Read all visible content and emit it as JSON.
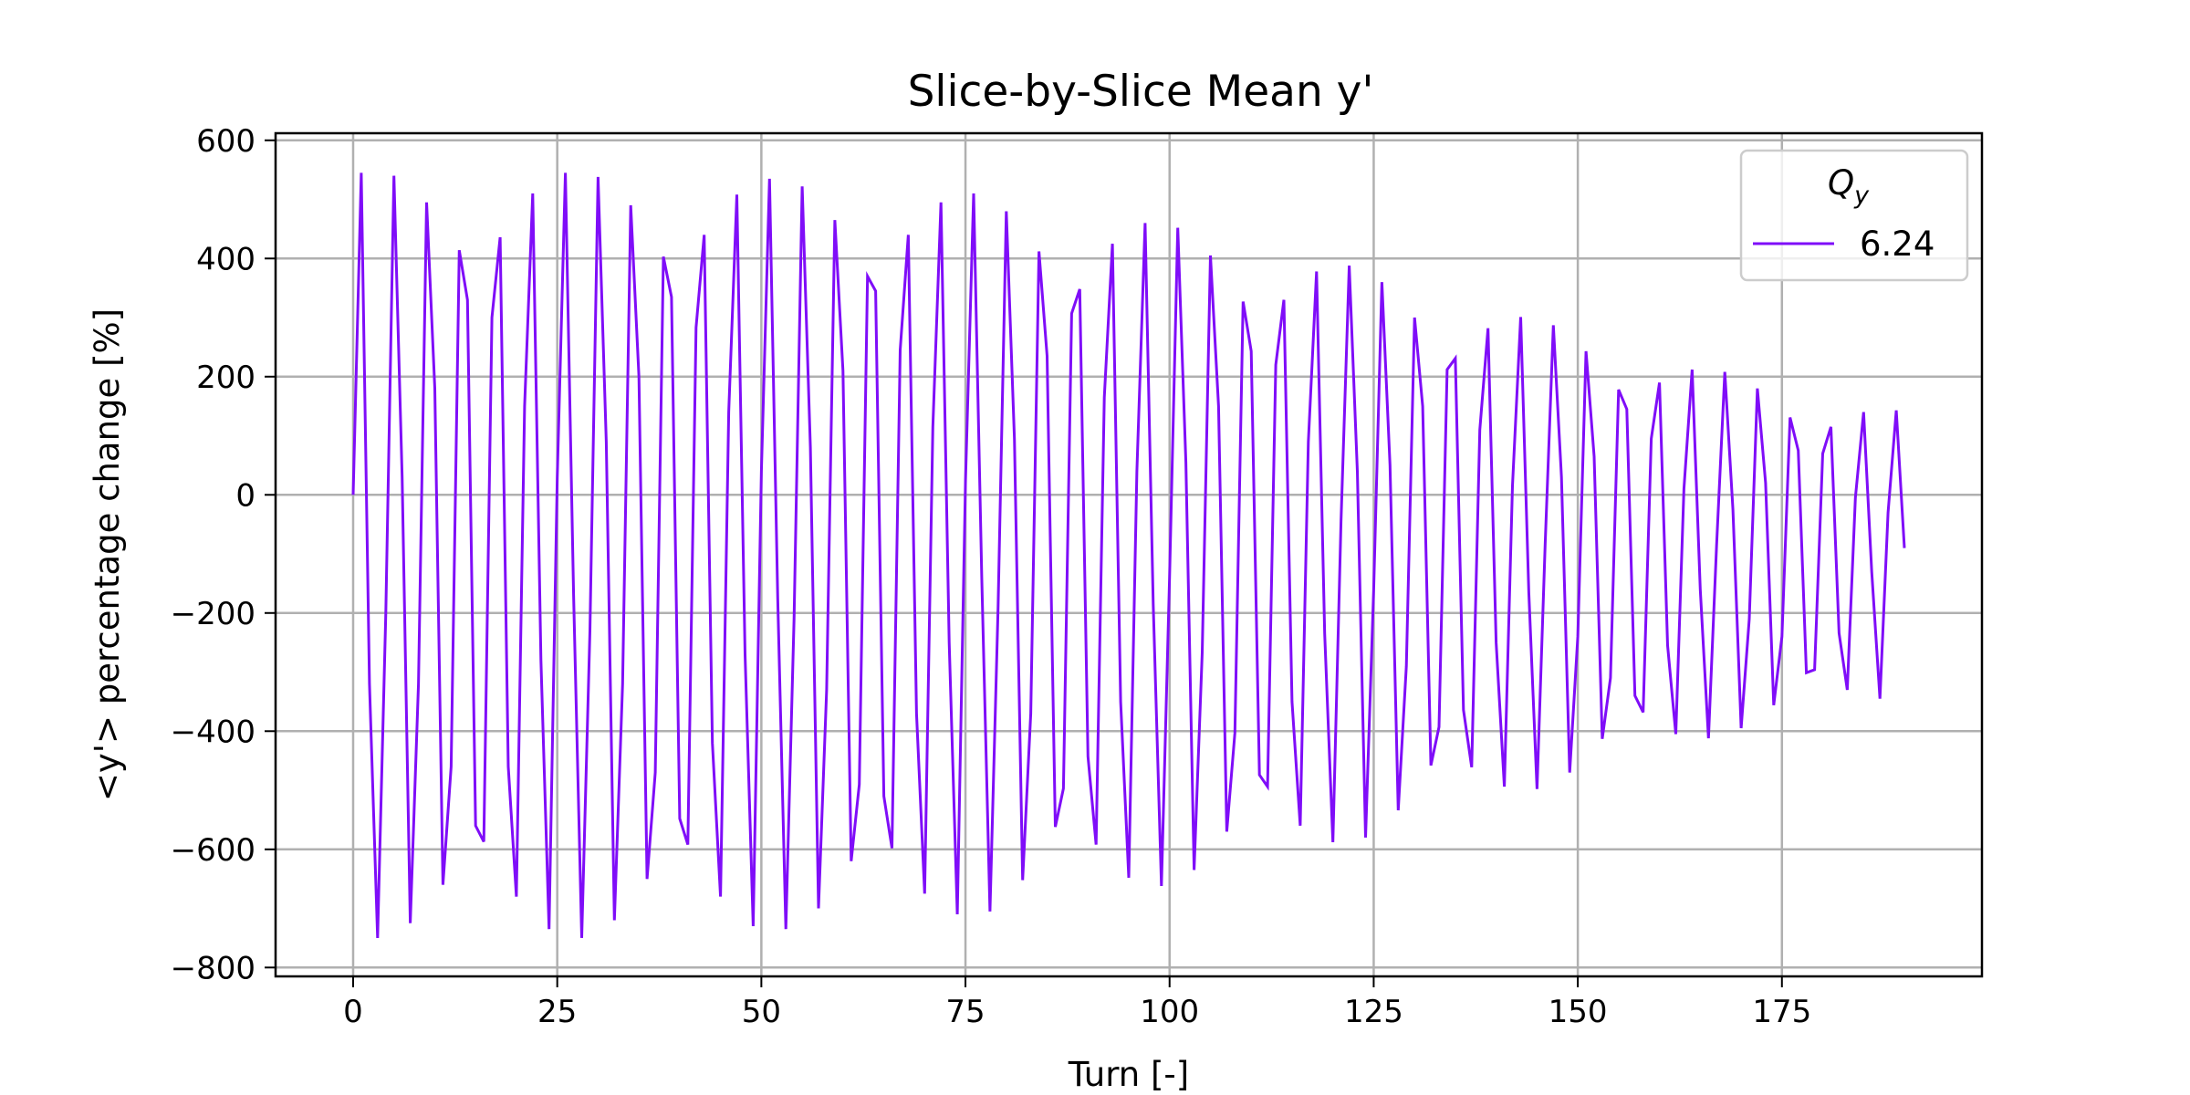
{
  "chart_data": {
    "type": "line",
    "title": "Slice-by-Slice Mean y'",
    "xlabel": "Turn [-]",
    "ylabel": "<y'> percentage change [%]",
    "xlim": [
      -9.5,
      199.5
    ],
    "ylim": [
      -815,
      612
    ],
    "xticks": [
      0,
      25,
      50,
      75,
      100,
      125,
      150,
      175
    ],
    "yticks": [
      600,
      400,
      200,
      0,
      -200,
      -400,
      -600,
      -800
    ],
    "grid": true,
    "legend": {
      "title_base": "Q",
      "title_sub": "y",
      "placement": "upper right"
    },
    "series": [
      {
        "name": "6.24",
        "color": "#7f0df8",
        "x": [
          0,
          1,
          2,
          3,
          4,
          5,
          6,
          7,
          8,
          9,
          10,
          11,
          12,
          13,
          14,
          15,
          16,
          17,
          18,
          19,
          20,
          21,
          22,
          23,
          24,
          25,
          26,
          27,
          28,
          29,
          30,
          31,
          32,
          33,
          34,
          35,
          36,
          37,
          38,
          39,
          40,
          41,
          42,
          43,
          44,
          45,
          46,
          47,
          48,
          49,
          50,
          51,
          52,
          53,
          54,
          55,
          56,
          57,
          58,
          59,
          60,
          61,
          62,
          63,
          64,
          65,
          66,
          67,
          68,
          69,
          70,
          71,
          72,
          73,
          74,
          75,
          76,
          77,
          78,
          79,
          80,
          81,
          82,
          83,
          84,
          85,
          86,
          87,
          88,
          89,
          90,
          91,
          92,
          93,
          94,
          95,
          96,
          97,
          98,
          99,
          100,
          101,
          102,
          103,
          104,
          105,
          106,
          107,
          108,
          109,
          110,
          111,
          112,
          113,
          114,
          115,
          116,
          117,
          118,
          119,
          120,
          121,
          122,
          123,
          124,
          125,
          126,
          127,
          128,
          129,
          130,
          131,
          132,
          133,
          134,
          135,
          136,
          137,
          138,
          139,
          140,
          141,
          142,
          143,
          144,
          145,
          146,
          147,
          148,
          149,
          150,
          151,
          152,
          153,
          154,
          155,
          156,
          157,
          158,
          159,
          160,
          161,
          162,
          163,
          164,
          165,
          166,
          167,
          168,
          169,
          170,
          171,
          172,
          173,
          174,
          175,
          176,
          177,
          178,
          179,
          180,
          181,
          182,
          183,
          184,
          185,
          186,
          187,
          188,
          189,
          190
        ],
        "y": [
          0,
          545,
          -320,
          -750,
          -200,
          540,
          30,
          -725,
          -320,
          495,
          180,
          -660,
          -460,
          414,
          330,
          -560,
          -587,
          300,
          436,
          -460,
          -680,
          150,
          510,
          -280,
          -735,
          30,
          545,
          -170,
          -750,
          -230,
          538,
          90,
          -720,
          -320,
          490,
          200,
          -650,
          -470,
          403,
          335,
          -548,
          -592,
          283,
          440,
          -420,
          -680,
          140,
          508,
          -270,
          -730,
          40,
          535,
          -175,
          -735,
          -210,
          522,
          80,
          -700,
          -330,
          465,
          210,
          -620,
          -490,
          370,
          345,
          -510,
          -598,
          245,
          440,
          -370,
          -675,
          115,
          495,
          -250,
          -710,
          25,
          510,
          -140,
          -705,
          -190,
          480,
          95,
          -652,
          -370,
          412,
          235,
          -562,
          -497,
          307,
          348,
          -443,
          -592,
          165,
          425,
          -350,
          -648,
          40,
          460,
          -185,
          -662,
          -140,
          452,
          55,
          -635,
          -267,
          405,
          150,
          -570,
          -403,
          327,
          243,
          -474,
          -494,
          220,
          330,
          -350,
          -560,
          90,
          378,
          -235,
          -588,
          -45,
          388,
          40,
          -580,
          -160,
          360,
          50,
          -534,
          -290,
          300,
          150,
          -458,
          -393,
          212,
          231,
          -364,
          -461,
          110,
          282,
          -250,
          -494,
          15,
          301,
          -165,
          -498,
          -85,
          287,
          30,
          -470,
          -240,
          243,
          65,
          -413,
          -310,
          178,
          145,
          -340,
          -368,
          95,
          190,
          -255,
          -405,
          10,
          212,
          -160,
          -412,
          -85,
          208,
          -25,
          -395,
          -210,
          180,
          20,
          -356,
          -240,
          131,
          75,
          -301,
          -296,
          70,
          115,
          -234,
          -330,
          -5,
          140,
          -130,
          -345,
          -30,
          143,
          -90
        ]
      }
    ]
  }
}
